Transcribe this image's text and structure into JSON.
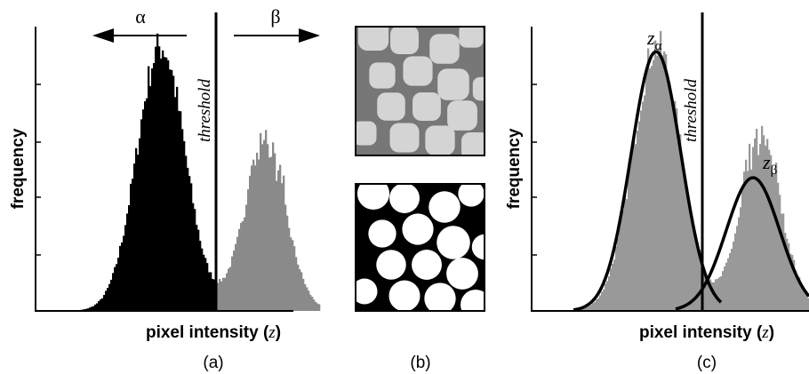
{
  "panel_a": {
    "left_label": "α",
    "right_label": "β",
    "threshold_label": "threshold",
    "y_label": "frequency",
    "x_label": {
      "before": "pixel intensity (",
      "var": "z",
      "after": ")"
    },
    "caption": "(a)"
  },
  "panel_b": {
    "caption": "(b)"
  },
  "panel_c": {
    "threshold_label": "threshold",
    "y_label": "frequency",
    "x_label": {
      "before": "pixel intensity (",
      "var": "z",
      "after": ")"
    },
    "caption": "(c)",
    "curve_labels": [
      {
        "base": "z",
        "sub": "α"
      },
      {
        "base": "z",
        "sub": "β"
      }
    ]
  }
}
